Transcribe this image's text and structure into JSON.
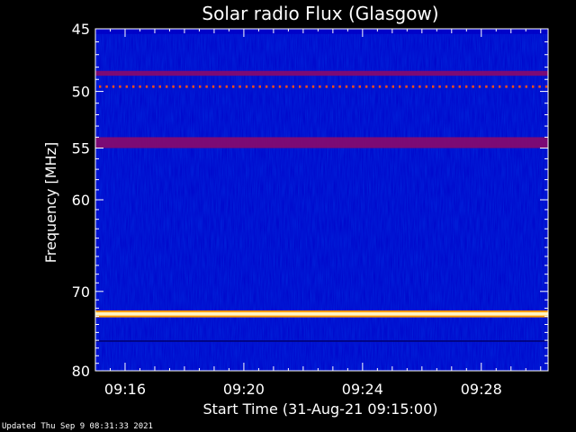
{
  "chart_data": {
    "type": "heatmap",
    "title": "Solar radio Flux (Glasgow)",
    "xlabel": "Start Time (31-Aug-21 09:15:00)",
    "ylabel": "Frequency [MHz]",
    "x_start": "09:15:00",
    "x_end": "09:30:15",
    "x_ticks": [
      "09:16",
      "09:20",
      "09:24",
      "09:28"
    ],
    "x_tick_minutes": [
      16,
      20,
      24,
      28
    ],
    "ylim": [
      45,
      80
    ],
    "y_scale": "log",
    "y_ticks": [
      45,
      50,
      55,
      60,
      70,
      80
    ],
    "bands_mhz": [
      {
        "from": 45.0,
        "to": 45.4,
        "level": "background"
      },
      {
        "from": 48.3,
        "to": 48.7,
        "level": "medium"
      },
      {
        "from": 49.5,
        "to": 49.7,
        "level": "dotted"
      },
      {
        "from": 54.0,
        "to": 55.0,
        "level": "medium"
      },
      {
        "from": 72.5,
        "to": 72.9,
        "level": "high"
      },
      {
        "from": 76.0,
        "to": 76.2,
        "level": "low"
      }
    ],
    "colors": {
      "background": "#0000c8",
      "low": "#000070",
      "medium": "#8a0a6a",
      "high": "#fff4c0",
      "high_edge": "#ff9a00",
      "dotted": "#ff5010"
    },
    "grid": false
  },
  "footer": "Updated Thu Sep  9 08:31:33 2021"
}
